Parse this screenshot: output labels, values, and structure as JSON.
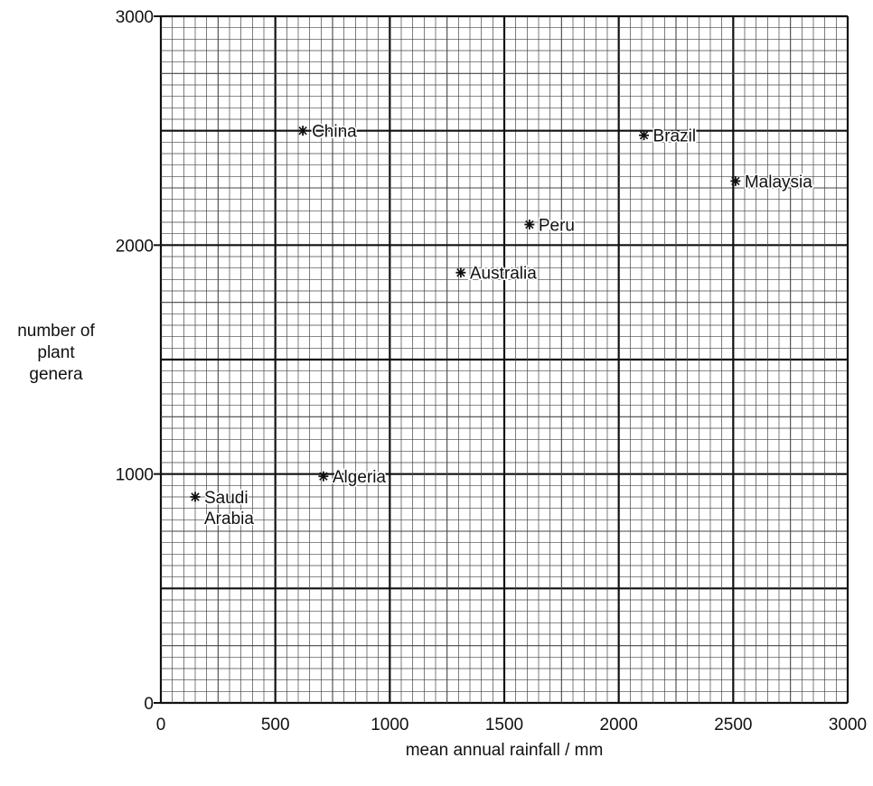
{
  "chart_data": {
    "type": "scatter",
    "xlabel": "mean annual rainfall / mm",
    "ylabel_lines": [
      "number of",
      "plant",
      "genera"
    ],
    "xlim": [
      0,
      3000
    ],
    "ylim": [
      0,
      3000
    ],
    "x_ticks": [
      "0",
      "500",
      "1000",
      "1500",
      "2000",
      "2500",
      "3000"
    ],
    "y_ticks": [
      "0",
      "1000",
      "2000",
      "3000"
    ],
    "grid": "graph paper (minor 50 mm x 50 genera, major 500 x 500)",
    "marker": "*",
    "points": [
      {
        "label": "China",
        "x": 620,
        "y": 2500
      },
      {
        "label": "Brazil",
        "x": 2110,
        "y": 2480
      },
      {
        "label": "Malaysia",
        "x": 2510,
        "y": 2280
      },
      {
        "label": "Peru",
        "x": 1610,
        "y": 2090
      },
      {
        "label": "Australia",
        "x": 1310,
        "y": 1880
      },
      {
        "label": "Algeria",
        "x": 710,
        "y": 990
      },
      {
        "label": "Saudi Arabia",
        "label_lines": [
          "Saudi",
          "Arabia"
        ],
        "x": 150,
        "y": 900
      }
    ]
  }
}
